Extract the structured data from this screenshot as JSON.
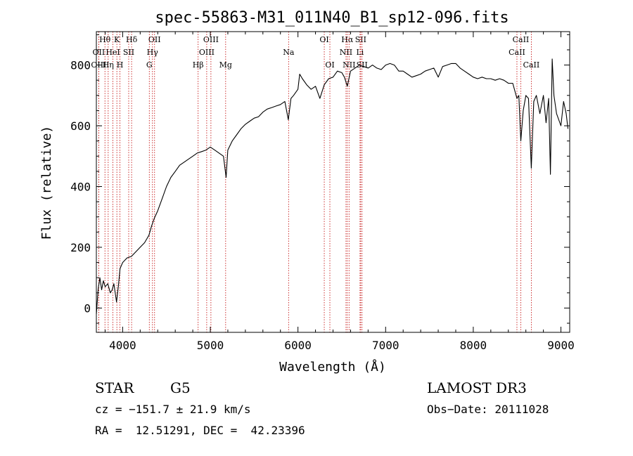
{
  "chart_data": {
    "type": "line",
    "title": "spec-55863-M31_011N40_B1_sp12-096.fits",
    "xlabel": "Wavelength (Å)",
    "ylabel": "Flux (relative)",
    "xlim": [
      3700,
      9100
    ],
    "ylim": [
      -80,
      910
    ],
    "x_ticks": [
      4000,
      5000,
      6000,
      7000,
      8000,
      9000
    ],
    "y_ticks": [
      0,
      200,
      400,
      600,
      800
    ],
    "grid": false,
    "series": [
      {
        "points": [
          [
            3700,
            -20
          ],
          [
            3720,
            60
          ],
          [
            3740,
            100
          ],
          [
            3760,
            60
          ],
          [
            3780,
            90
          ],
          [
            3800,
            70
          ],
          [
            3830,
            80
          ],
          [
            3860,
            50
          ],
          [
            3880,
            60
          ],
          [
            3900,
            80
          ],
          [
            3930,
            20
          ],
          [
            3950,
            70
          ],
          [
            3970,
            130
          ],
          [
            4000,
            150
          ],
          [
            4050,
            165
          ],
          [
            4100,
            170
          ],
          [
            4150,
            185
          ],
          [
            4200,
            200
          ],
          [
            4250,
            215
          ],
          [
            4280,
            230
          ],
          [
            4300,
            240
          ],
          [
            4330,
            270
          ],
          [
            4360,
            295
          ],
          [
            4400,
            320
          ],
          [
            4450,
            360
          ],
          [
            4500,
            400
          ],
          [
            4550,
            430
          ],
          [
            4600,
            450
          ],
          [
            4650,
            470
          ],
          [
            4700,
            480
          ],
          [
            4750,
            490
          ],
          [
            4800,
            500
          ],
          [
            4850,
            510
          ],
          [
            4900,
            515
          ],
          [
            4950,
            520
          ],
          [
            5000,
            530
          ],
          [
            5050,
            520
          ],
          [
            5100,
            510
          ],
          [
            5150,
            500
          ],
          [
            5180,
            430
          ],
          [
            5200,
            520
          ],
          [
            5250,
            550
          ],
          [
            5300,
            570
          ],
          [
            5350,
            590
          ],
          [
            5400,
            605
          ],
          [
            5450,
            615
          ],
          [
            5500,
            625
          ],
          [
            5550,
            630
          ],
          [
            5600,
            645
          ],
          [
            5650,
            655
          ],
          [
            5700,
            660
          ],
          [
            5750,
            665
          ],
          [
            5800,
            670
          ],
          [
            5850,
            680
          ],
          [
            5890,
            620
          ],
          [
            5920,
            690
          ],
          [
            5950,
            700
          ],
          [
            6000,
            720
          ],
          [
            6020,
            770
          ],
          [
            6050,
            755
          ],
          [
            6100,
            735
          ],
          [
            6150,
            720
          ],
          [
            6200,
            730
          ],
          [
            6250,
            690
          ],
          [
            6300,
            735
          ],
          [
            6350,
            755
          ],
          [
            6400,
            760
          ],
          [
            6450,
            780
          ],
          [
            6500,
            775
          ],
          [
            6530,
            760
          ],
          [
            6563,
            730
          ],
          [
            6600,
            780
          ],
          [
            6650,
            790
          ],
          [
            6700,
            800
          ],
          [
            6750,
            795
          ],
          [
            6800,
            790
          ],
          [
            6850,
            800
          ],
          [
            6900,
            790
          ],
          [
            6950,
            785
          ],
          [
            7000,
            800
          ],
          [
            7050,
            805
          ],
          [
            7100,
            800
          ],
          [
            7150,
            780
          ],
          [
            7200,
            780
          ],
          [
            7250,
            770
          ],
          [
            7300,
            760
          ],
          [
            7350,
            765
          ],
          [
            7400,
            770
          ],
          [
            7450,
            780
          ],
          [
            7500,
            785
          ],
          [
            7550,
            790
          ],
          [
            7600,
            760
          ],
          [
            7650,
            795
          ],
          [
            7700,
            800
          ],
          [
            7750,
            805
          ],
          [
            7800,
            805
          ],
          [
            7850,
            790
          ],
          [
            7900,
            780
          ],
          [
            7950,
            770
          ],
          [
            8000,
            760
          ],
          [
            8050,
            755
          ],
          [
            8100,
            760
          ],
          [
            8150,
            755
          ],
          [
            8200,
            755
          ],
          [
            8250,
            750
          ],
          [
            8300,
            755
          ],
          [
            8350,
            750
          ],
          [
            8400,
            740
          ],
          [
            8450,
            740
          ],
          [
            8498,
            690
          ],
          [
            8520,
            700
          ],
          [
            8542,
            550
          ],
          [
            8570,
            650
          ],
          [
            8600,
            700
          ],
          [
            8630,
            690
          ],
          [
            8662,
            460
          ],
          [
            8690,
            680
          ],
          [
            8720,
            700
          ],
          [
            8760,
            640
          ],
          [
            8800,
            700
          ],
          [
            8830,
            610
          ],
          [
            8860,
            690
          ],
          [
            8880,
            440
          ],
          [
            8900,
            820
          ],
          [
            8920,
            700
          ],
          [
            8950,
            640
          ],
          [
            9000,
            600
          ],
          [
            9030,
            680
          ],
          [
            9060,
            640
          ],
          [
            9080,
            590
          ]
        ]
      }
    ],
    "lines": [
      {
        "label": "Hθ",
        "x": 3798,
        "row": 0
      },
      {
        "label": "K",
        "x": 3934,
        "row": 0
      },
      {
        "label": "Hδ",
        "x": 4102,
        "row": 0
      },
      {
        "label": "OII",
        "x": 4364,
        "row": 0
      },
      {
        "label": "OIII",
        "x": 5007,
        "row": 0
      },
      {
        "label": "OI",
        "x": 6300,
        "row": 0
      },
      {
        "label": "Hα",
        "x": 6563,
        "row": 0
      },
      {
        "label": "SII",
        "x": 6716,
        "row": 0
      },
      {
        "label": "CaII",
        "x": 8542,
        "row": 0
      },
      {
        "label": "OII",
        "x": 3727,
        "row": 1
      },
      {
        "label": "HeI",
        "x": 3889,
        "row": 1
      },
      {
        "label": "SII",
        "x": 4069,
        "row": 1
      },
      {
        "label": "Hγ",
        "x": 4340,
        "row": 1
      },
      {
        "label": "OIII",
        "x": 4959,
        "row": 1
      },
      {
        "label": "Na",
        "x": 5893,
        "row": 1
      },
      {
        "label": "NII",
        "x": 6548,
        "row": 1
      },
      {
        "label": "Li",
        "x": 6708,
        "row": 1
      },
      {
        "label": "CaII",
        "x": 8498,
        "row": 1
      },
      {
        "label": "OIII",
        "x": 3727,
        "row": 2
      },
      {
        "label": "Hη",
        "x": 3835,
        "row": 2
      },
      {
        "label": "H",
        "x": 3969,
        "row": 2
      },
      {
        "label": "G",
        "x": 4304,
        "row": 2
      },
      {
        "label": "Hβ",
        "x": 4861,
        "row": 2
      },
      {
        "label": "Mg",
        "x": 5175,
        "row": 2
      },
      {
        "label": "OI",
        "x": 6364,
        "row": 2
      },
      {
        "label": "NII",
        "x": 6583,
        "row": 2
      },
      {
        "label": "SII",
        "x": 6731,
        "row": 2
      },
      {
        "label": "CaII",
        "x": 8662,
        "row": 2
      }
    ]
  },
  "info": {
    "class": "STAR",
    "subclass": "G5",
    "survey": "LAMOST DR3",
    "cz": "cz = −151.7 ± 21.9 km/s",
    "obs_date": "Obs−Date: 20111028",
    "coords": "RA =  12.51291, DEC =  42.23396"
  }
}
